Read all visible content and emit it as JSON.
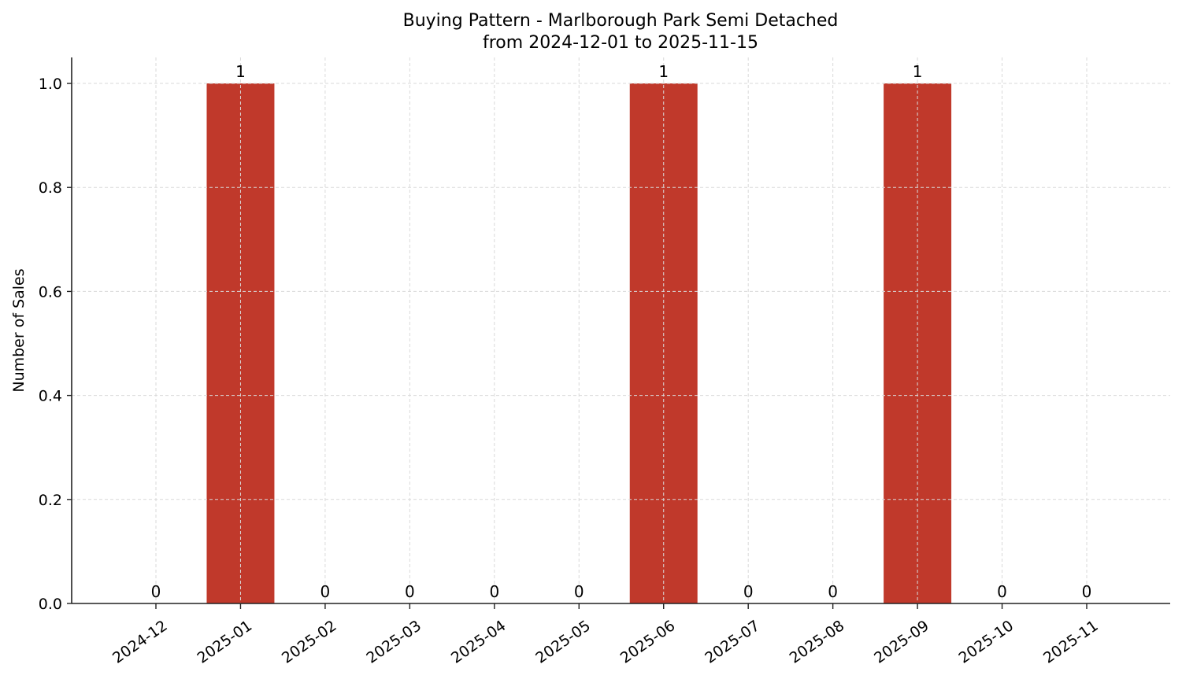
{
  "chart_data": {
    "type": "bar",
    "title": "Buying Pattern - Marlborough Park Semi Detached",
    "subtitle": "from 2024-12-01 to 2025-11-15",
    "xlabel": "",
    "ylabel": "Number of Sales",
    "categories": [
      "2024-12",
      "2025-01",
      "2025-02",
      "2025-03",
      "2025-04",
      "2025-05",
      "2025-06",
      "2025-07",
      "2025-08",
      "2025-09",
      "2025-10",
      "2025-11"
    ],
    "values": [
      0,
      1,
      0,
      0,
      0,
      0,
      1,
      0,
      0,
      1,
      0,
      0
    ],
    "data_labels": [
      "0",
      "1",
      "0",
      "0",
      "0",
      "0",
      "1",
      "0",
      "0",
      "1",
      "0",
      "0"
    ],
    "ylim": [
      0,
      1.05
    ],
    "yticks": [
      "0.0",
      "0.2",
      "0.4",
      "0.6",
      "0.8",
      "1.0"
    ],
    "grid": true,
    "legend": null,
    "bar_color": "#c0392b",
    "grid_color": "#d9d9d9",
    "xtick_rotation": 35
  }
}
